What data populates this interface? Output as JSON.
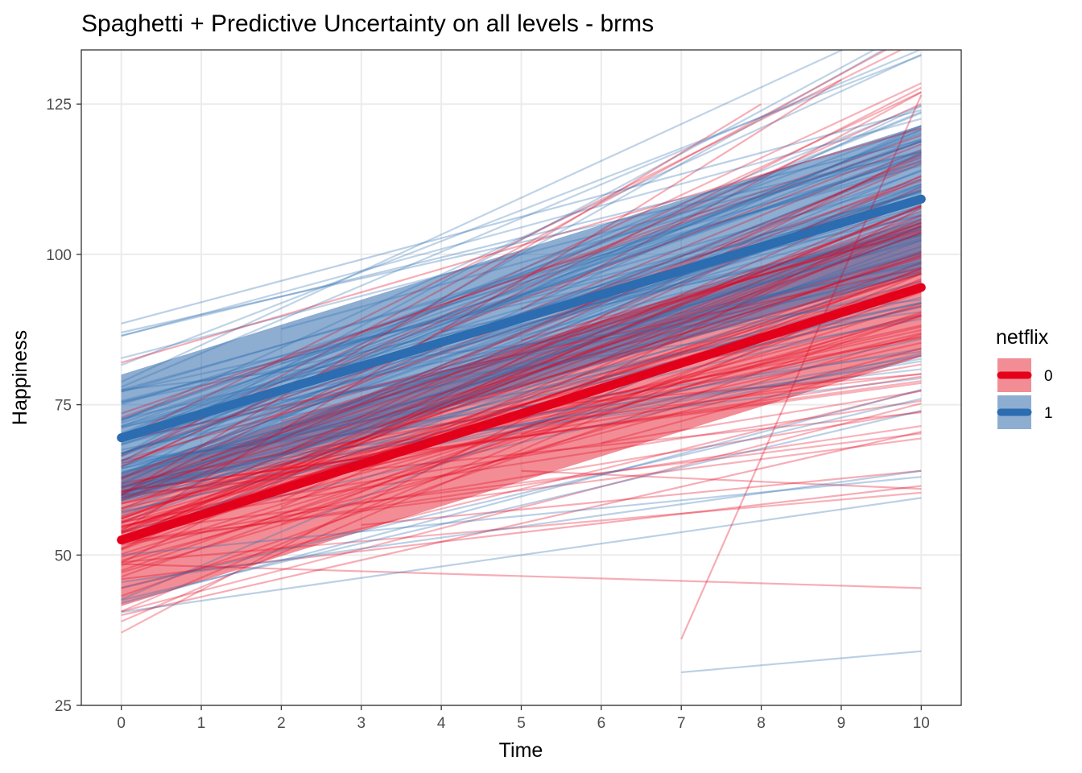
{
  "chart_data": {
    "type": "line",
    "title": "Spaghetti + Predictive Uncertainty on all levels - brms",
    "xlabel": "Time",
    "ylabel": "Happiness",
    "xlim": [
      -0.5,
      10.5
    ],
    "ylim": [
      25,
      134
    ],
    "x_ticks": [
      0,
      1,
      2,
      3,
      4,
      5,
      6,
      7,
      8,
      9,
      10
    ],
    "y_ticks": [
      25,
      50,
      75,
      100,
      125
    ],
    "grid": true,
    "legend": {
      "title": "netflix",
      "placement": "right",
      "entries": [
        {
          "label": "0",
          "color": "#E3001B"
        },
        {
          "label": "1",
          "color": "#2C6CB0"
        }
      ]
    },
    "series": [
      {
        "name": "0",
        "color": "#E3001B",
        "fill_color": "#E8303F",
        "mean_line": {
          "x": [
            0,
            10
          ],
          "y": [
            52.5,
            94.5
          ]
        },
        "band": {
          "x": [
            0,
            10
          ],
          "lower": [
            41.5,
            83
          ],
          "upper": [
            63.5,
            106
          ]
        }
      },
      {
        "name": "1",
        "color": "#2C6CB0",
        "fill_color": "#2F6AAB",
        "mean_line": {
          "x": [
            0,
            10
          ],
          "y": [
            69.5,
            109.2
          ]
        },
        "band": {
          "x": [
            0,
            10
          ],
          "lower": [
            59,
            97
          ],
          "upper": [
            80,
            121.5
          ]
        }
      }
    ],
    "highlighted_spaghetti": [
      {
        "group": "0",
        "x": [
          7,
          10
        ],
        "y": [
          36,
          126.5
        ]
      },
      {
        "group": "0",
        "x": [
          0,
          10
        ],
        "y": [
          48.5,
          44.5
        ]
      },
      {
        "group": "0",
        "x": [
          0,
          10
        ],
        "y": [
          82,
          121
        ]
      },
      {
        "group": "0",
        "x": [
          3,
          10
        ],
        "y": [
          55,
          64
        ]
      },
      {
        "group": "0",
        "x": [
          0,
          10
        ],
        "y": [
          46,
          61.5
        ]
      },
      {
        "group": "0",
        "x": [
          0,
          10
        ],
        "y": [
          40,
          70.5
        ]
      },
      {
        "group": "0",
        "x": [
          5,
          10
        ],
        "y": [
          64,
          61
        ]
      },
      {
        "group": "0",
        "x": [
          0,
          9
        ],
        "y": [
          54,
          129
        ]
      },
      {
        "group": "0",
        "x": [
          0,
          8
        ],
        "y": [
          60,
          125
        ]
      },
      {
        "group": "1",
        "x": [
          7,
          10
        ],
        "y": [
          30.5,
          34
        ]
      },
      {
        "group": "1",
        "x": [
          0,
          10
        ],
        "y": [
          88.5,
          124
        ]
      },
      {
        "group": "1",
        "x": [
          0,
          10
        ],
        "y": [
          87,
          117
        ]
      },
      {
        "group": "1",
        "x": [
          0,
          10
        ],
        "y": [
          86.5,
          119
        ]
      },
      {
        "group": "1",
        "x": [
          0,
          10
        ],
        "y": [
          40.5,
          59.5
        ]
      },
      {
        "group": "1",
        "x": [
          0,
          10
        ],
        "y": [
          45.5,
          64
        ]
      },
      {
        "group": "1",
        "x": [
          0,
          10
        ],
        "y": [
          44.5,
          76
        ]
      },
      {
        "group": "1",
        "x": [
          0,
          10
        ],
        "y": [
          42,
          77.5
        ]
      },
      {
        "group": "1",
        "x": [
          0,
          10
        ],
        "y": [
          42.5,
          74
        ]
      },
      {
        "group": "1",
        "x": [
          0,
          10
        ],
        "y": [
          50,
          63
        ]
      }
    ],
    "spaghetti_config": {
      "count_per_group": 95,
      "line_alpha": 0.3,
      "group_0": {
        "intercept_mean": 55,
        "intercept_sd": 7,
        "slope_mean": 4.2,
        "slope_sd": 1.4
      },
      "group_1": {
        "intercept_mean": 67,
        "intercept_sd": 7,
        "slope_mean": 4.0,
        "slope_sd": 1.4
      }
    }
  }
}
